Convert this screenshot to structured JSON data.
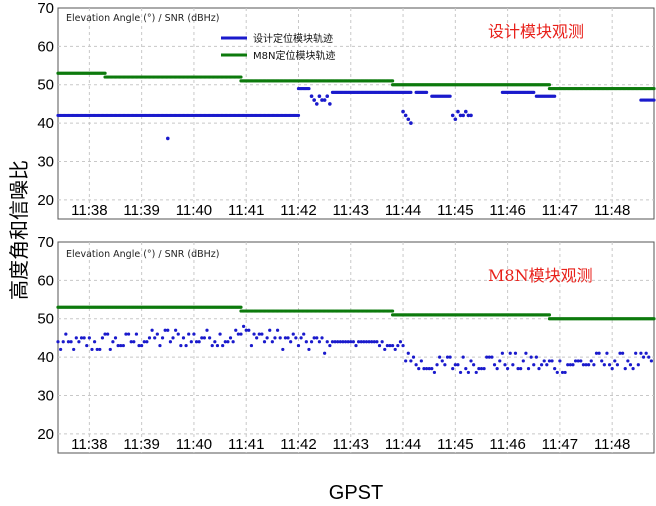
{
  "figure": {
    "ylabel": "高度角和信噪比",
    "xlabel": "GPST",
    "colors": {
      "series_blue": "#1a1acc",
      "series_green": "#0d7a0d",
      "annotation_red": "#e8201a",
      "grid": "#c8c8c8"
    }
  },
  "chart_data": [
    {
      "type": "scatter",
      "inner_title": "Elevation Angle (°) / SNR (dBHz)",
      "annotation": "设计模块观测",
      "xlabel": "GPST",
      "ylabel": "高度角和信噪比",
      "xticks": [
        "11:38",
        "11:39",
        "11:40",
        "11:41",
        "11:42",
        "11:43",
        "11:44",
        "11:45",
        "11:46",
        "11:47",
        "11:48"
      ],
      "xlim_minutes": [
        -0.6,
        10.8
      ],
      "ylim": [
        15,
        70
      ],
      "yticks": [
        20,
        30,
        40,
        50,
        60,
        70
      ],
      "grid": true,
      "legend_position": "top-center",
      "series": [
        {
          "name": "设计定位模块轨迹",
          "color": "#1a1acc",
          "segments": [
            {
              "x": [
                -0.6,
                4.0
              ],
              "y": 42
            },
            {
              "x": [
                4.0,
                4.2
              ],
              "y": 49
            },
            {
              "x": [
                4.65,
                6.15
              ],
              "y": 48
            },
            {
              "x": [
                6.25,
                6.45
              ],
              "y": 48
            },
            {
              "x": [
                6.55,
                6.9
              ],
              "y": 47
            },
            {
              "x": [
                7.9,
                8.5
              ],
              "y": 48
            },
            {
              "x": [
                8.55,
                8.9
              ],
              "y": 47
            },
            {
              "x": [
                10.55,
                10.8
              ],
              "y": 46
            }
          ],
          "points": [
            {
              "x": 1.5,
              "y": 36
            },
            {
              "x": 4.25,
              "y": 47
            },
            {
              "x": 4.3,
              "y": 46
            },
            {
              "x": 4.35,
              "y": 45
            },
            {
              "x": 4.4,
              "y": 47
            },
            {
              "x": 4.45,
              "y": 46
            },
            {
              "x": 4.5,
              "y": 46
            },
            {
              "x": 4.55,
              "y": 47
            },
            {
              "x": 4.6,
              "y": 45
            },
            {
              "x": 6.0,
              "y": 43
            },
            {
              "x": 6.05,
              "y": 42
            },
            {
              "x": 6.1,
              "y": 41
            },
            {
              "x": 6.15,
              "y": 40
            },
            {
              "x": 6.95,
              "y": 42
            },
            {
              "x": 7.0,
              "y": 41
            },
            {
              "x": 7.05,
              "y": 43
            },
            {
              "x": 7.1,
              "y": 42
            },
            {
              "x": 7.15,
              "y": 42
            },
            {
              "x": 7.2,
              "y": 43
            },
            {
              "x": 7.25,
              "y": 42
            },
            {
              "x": 7.3,
              "y": 42
            }
          ]
        },
        {
          "name": "M8N定位模块轨迹",
          "color": "#0d7a0d",
          "segments": [
            {
              "x": [
                -0.6,
                0.3
              ],
              "y": 53
            },
            {
              "x": [
                0.3,
                2.9
              ],
              "y": 52
            },
            {
              "x": [
                2.9,
                5.8
              ],
              "y": 51
            },
            {
              "x": [
                5.8,
                8.8
              ],
              "y": 50
            },
            {
              "x": [
                8.8,
                10.8
              ],
              "y": 49
            }
          ]
        }
      ]
    },
    {
      "type": "scatter",
      "inner_title": "Elevation Angle (°) / SNR (dBHz)",
      "annotation": "M8N模块观测",
      "xlabel": "GPST",
      "ylabel": "高度角和信噪比",
      "xticks": [
        "11:38",
        "11:39",
        "11:40",
        "11:41",
        "11:42",
        "11:43",
        "11:44",
        "11:45",
        "11:46",
        "11:47",
        "11:48"
      ],
      "xlim_minutes": [
        -0.6,
        10.8
      ],
      "ylim": [
        15,
        70
      ],
      "yticks": [
        20,
        30,
        40,
        50,
        60,
        70
      ],
      "grid": true,
      "series": [
        {
          "name": "",
          "color": "#1a1acc",
          "trend": [
            {
              "x": -0.6,
              "y": 43
            },
            {
              "x": 0.5,
              "y": 44
            },
            {
              "x": 1.5,
              "y": 45
            },
            {
              "x": 2.5,
              "y": 45
            },
            {
              "x": 3.0,
              "y": 46
            },
            {
              "x": 3.5,
              "y": 45
            },
            {
              "x": 4.0,
              "y": 44
            },
            {
              "x": 5.0,
              "y": 43
            },
            {
              "x": 6.0,
              "y": 42
            },
            {
              "x": 6.3,
              "y": 38
            },
            {
              "x": 7.0,
              "y": 38
            },
            {
              "x": 8.0,
              "y": 39
            },
            {
              "x": 9.0,
              "y": 38
            },
            {
              "x": 10.0,
              "y": 39
            },
            {
              "x": 10.8,
              "y": 39
            }
          ],
          "spread": 2.5,
          "flat_run": {
            "x": [
              4.5,
              5.6
            ],
            "y": 44
          }
        },
        {
          "name": "",
          "color": "#0d7a0d",
          "segments": [
            {
              "x": [
                -0.6,
                2.9
              ],
              "y": 53
            },
            {
              "x": [
                2.9,
                5.8
              ],
              "y": 52
            },
            {
              "x": [
                5.8,
                8.8
              ],
              "y": 51
            },
            {
              "x": [
                8.8,
                10.8
              ],
              "y": 50
            }
          ]
        }
      ]
    }
  ]
}
